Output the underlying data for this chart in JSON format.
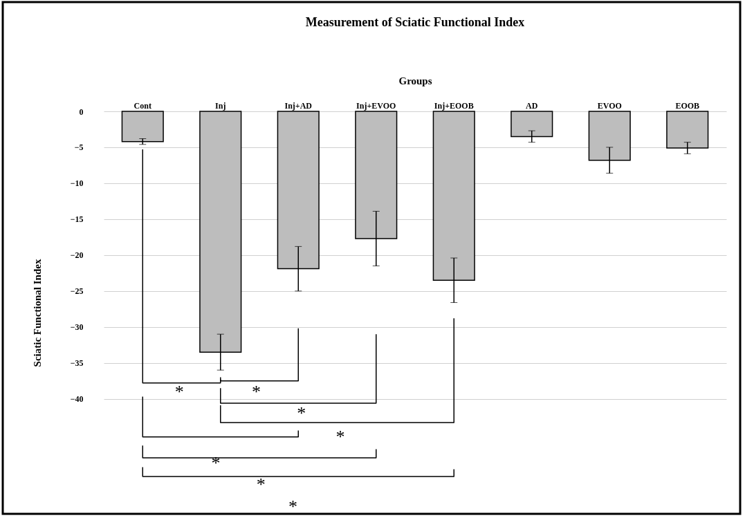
{
  "chart_data": {
    "type": "bar",
    "title": "Measurement of Sciatic Functional Index",
    "xlabel": "Groups",
    "ylabel": "Sciatic Functional Index",
    "categories": [
      "Cont",
      "Inj",
      "Inj+AD",
      "Inj+EVOO",
      "Inj+EOOB",
      "AD",
      "EVOO",
      "EOOB"
    ],
    "values": [
      -4.2,
      -33.5,
      -21.9,
      -17.7,
      -23.5,
      -3.5,
      -6.8,
      -5.1
    ],
    "errors": [
      0.4,
      2.5,
      3.1,
      3.8,
      3.1,
      0.8,
      1.8,
      0.8
    ],
    "color": "#bdbdbd",
    "ylim": [
      -56,
      0
    ],
    "yticks": [
      0,
      -5,
      -10,
      -15,
      -20,
      -25,
      -30,
      -35,
      -40
    ],
    "grid": "y",
    "annotations": [
      "*",
      "*",
      "*",
      "*",
      "*",
      "*",
      "*"
    ]
  }
}
